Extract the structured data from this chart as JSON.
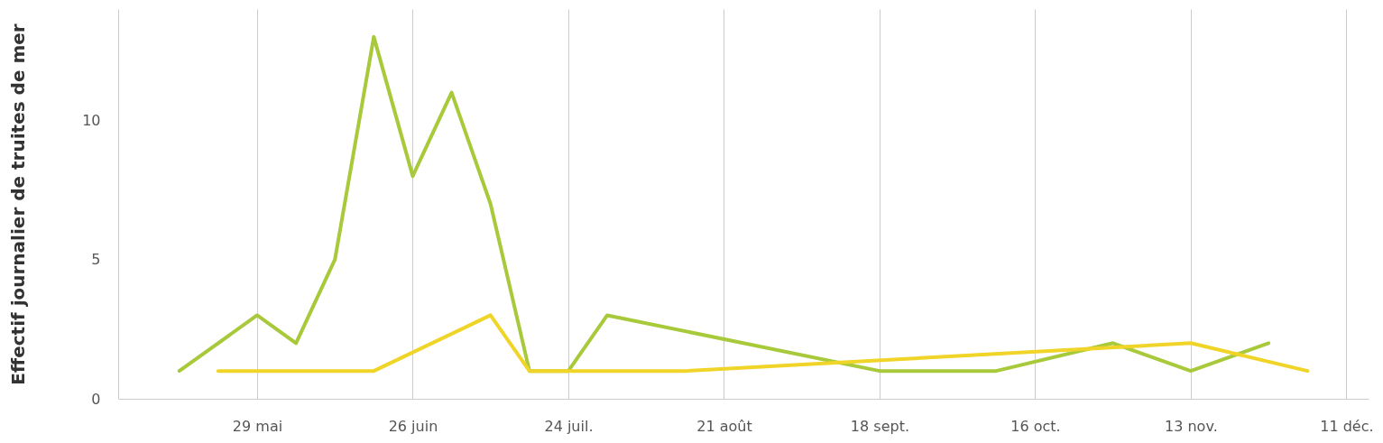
{
  "chart_data": {
    "type": "line",
    "ylabel": "Effectif journalier de truites de mer",
    "xlim": [
      "--05-04",
      "--12-15"
    ],
    "xticks": [
      {
        "value": "--05-29",
        "label": "29 mai"
      },
      {
        "value": "--06-26",
        "label": "26 juin"
      },
      {
        "value": "--07-24",
        "label": "24 juil."
      },
      {
        "value": "--08-21",
        "label": "21 août"
      },
      {
        "value": "--09-18",
        "label": "18 sept."
      },
      {
        "value": "--10-16",
        "label": "16 oct."
      },
      {
        "value": "--11-13",
        "label": "13 nov."
      },
      {
        "value": "--12-11",
        "label": "11 déc."
      }
    ],
    "ylim": [
      0,
      14
    ],
    "yticks": [
      0,
      5,
      10
    ],
    "grid": "x",
    "marker": "none",
    "line_style": "solid",
    "series": [
      {
        "color": "#a8c93a",
        "x": [
          "--05-15",
          "--05-29",
          "--06-05",
          "--06-12",
          "--06-19",
          "--06-26",
          "--07-03",
          "--07-10",
          "--07-17",
          "--07-24",
          "--07-31",
          "--09-18",
          "--10-09",
          "--10-30",
          "--11-13",
          "--11-27"
        ],
        "values": [
          1,
          3,
          2,
          5,
          13,
          8,
          11,
          7,
          1,
          1,
          3,
          1,
          1,
          2,
          1,
          2
        ]
      },
      {
        "color": "#f0d428",
        "x": [
          "--05-22",
          "--06-19",
          "--07-10",
          "--07-17",
          "--08-14",
          "--11-13",
          "--12-04"
        ],
        "values": [
          1,
          1,
          3,
          1,
          1,
          2,
          1
        ]
      }
    ]
  }
}
